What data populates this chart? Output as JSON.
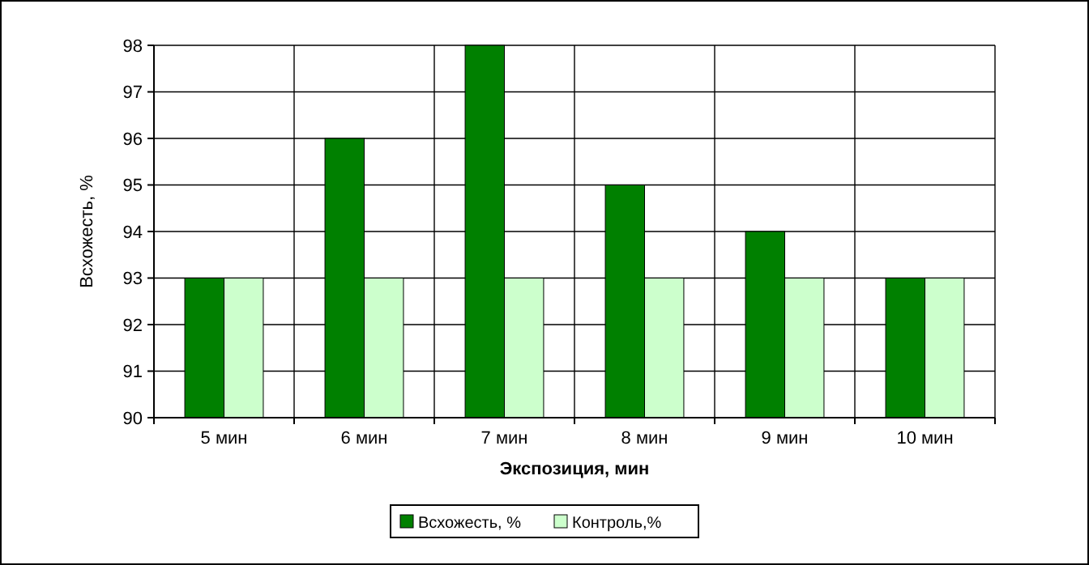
{
  "chart_data": {
    "type": "bar",
    "xlabel": "Экспозиция, мин",
    "ylabel": "Всхожесть, %",
    "categories": [
      "5 мин",
      "6 мин",
      "7 мин",
      "8 мин",
      "9 мин",
      "10 мин"
    ],
    "series": [
      {
        "name": "Всхожесть, %",
        "color": "#008000",
        "values": [
          93,
          96,
          98,
          95,
          94,
          93
        ]
      },
      {
        "name": "Контроль,%",
        "color": "#ccffcc",
        "values": [
          93,
          93,
          93,
          93,
          93,
          93
        ]
      }
    ],
    "ylim": [
      90,
      98
    ],
    "yticks": [
      90,
      91,
      92,
      93,
      94,
      95,
      96,
      97,
      98
    ],
    "grid": true,
    "legend": "bottom"
  }
}
